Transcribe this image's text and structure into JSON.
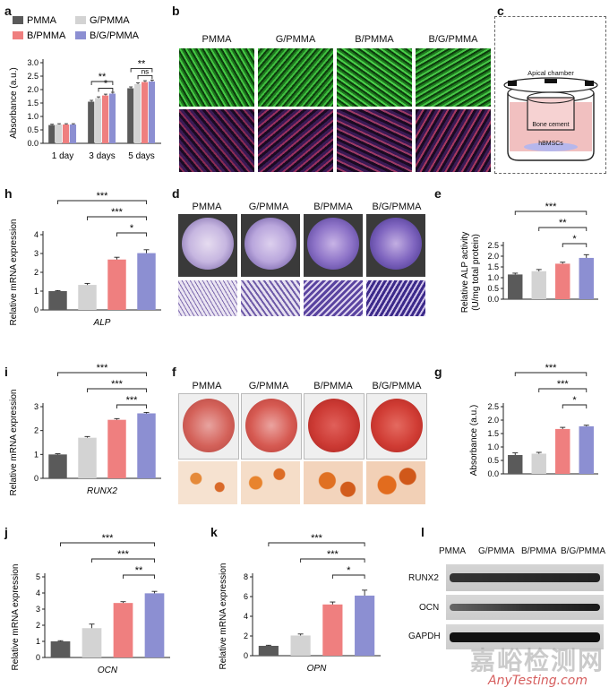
{
  "panels": {
    "a": "a",
    "b": "b",
    "c": "c",
    "d": "d",
    "e": "e",
    "f": "f",
    "g": "g",
    "h": "h",
    "i": "i",
    "j": "j",
    "k": "k",
    "l": "l"
  },
  "groups": [
    "PMMA",
    "G/PMMA",
    "B/PMMA",
    "B/G/PMMA"
  ],
  "colors": {
    "PMMA": "#5a5a5a",
    "G/PMMA": "#d3d3d3",
    "B/PMMA": "#ef7f7f",
    "B/G/PMMA": "#8c8fd2"
  },
  "chart_data": [
    {
      "id": "a",
      "type": "bar",
      "ylabel": "Absorbance (a.u.)",
      "ylim": [
        0,
        3.0
      ],
      "yticks": [
        "0.0",
        "0.5",
        "1.0",
        "1.5",
        "2.0",
        "2.5",
        "3.0"
      ],
      "categories": [
        "1 day",
        "3 days",
        "5 days"
      ],
      "series": [
        {
          "name": "PMMA",
          "values": [
            0.68,
            1.55,
            2.05
          ],
          "errors": [
            0.03,
            0.05,
            0.05
          ]
        },
        {
          "name": "G/PMMA",
          "values": [
            0.7,
            1.68,
            2.2
          ],
          "errors": [
            0.03,
            0.05,
            0.05
          ]
        },
        {
          "name": "B/PMMA",
          "values": [
            0.7,
            1.78,
            2.28
          ],
          "errors": [
            0.03,
            0.05,
            0.05
          ]
        },
        {
          "name": "B/G/PMMA",
          "values": [
            0.7,
            1.85,
            2.3
          ],
          "errors": [
            0.03,
            0.05,
            0.05
          ]
        }
      ],
      "significance": [
        "**",
        "*",
        "**",
        "ns"
      ]
    },
    {
      "id": "h",
      "type": "bar",
      "ylabel": "Relative mRNA expression",
      "xlabel": "ALP",
      "ylim": [
        0,
        4
      ],
      "yticks": [
        "0",
        "1",
        "2",
        "3",
        "4"
      ],
      "categories": [
        "PMMA",
        "G/PMMA",
        "B/PMMA",
        "B/G/PMMA"
      ],
      "values": [
        1.0,
        1.33,
        2.68,
        3.02
      ],
      "errors": [
        0.03,
        0.08,
        0.12,
        0.18
      ],
      "significance": [
        "***",
        "***",
        "*"
      ]
    },
    {
      "id": "e",
      "type": "bar",
      "ylabel": "Relative ALP activity",
      "ylabel2": "(U/mg total protein)",
      "ylim": [
        0,
        2.5
      ],
      "yticks": [
        "0.0",
        "0.5",
        "1.0",
        "1.5",
        "2.0",
        "2.5"
      ],
      "categories": [
        "PMMA",
        "G/PMMA",
        "B/PMMA",
        "B/G/PMMA"
      ],
      "values": [
        1.15,
        1.3,
        1.65,
        1.92
      ],
      "errors": [
        0.06,
        0.08,
        0.07,
        0.15
      ],
      "significance": [
        "***",
        "**",
        "*"
      ]
    },
    {
      "id": "i",
      "type": "bar",
      "ylabel": "Relative mRNA expression",
      "xlabel": "RUNX2",
      "ylim": [
        0,
        3
      ],
      "yticks": [
        "0",
        "1",
        "2",
        "3"
      ],
      "categories": [
        "PMMA",
        "G/PMMA",
        "B/PMMA",
        "B/G/PMMA"
      ],
      "values": [
        1.0,
        1.7,
        2.45,
        2.72
      ],
      "errors": [
        0.03,
        0.05,
        0.05,
        0.04
      ],
      "significance": [
        "***",
        "***",
        "***"
      ]
    },
    {
      "id": "g",
      "type": "bar",
      "ylabel": "Absorbance (a.u.)",
      "ylim": [
        0,
        2.5
      ],
      "yticks": [
        "0.0",
        "0.5",
        "1.0",
        "1.5",
        "2.0",
        "2.5"
      ],
      "categories": [
        "PMMA",
        "G/PMMA",
        "B/PMMA",
        "B/G/PMMA"
      ],
      "values": [
        0.7,
        0.75,
        1.67,
        1.77
      ],
      "errors": [
        0.08,
        0.05,
        0.06,
        0.04
      ],
      "significance": [
        "***",
        "***",
        "*"
      ]
    },
    {
      "id": "j",
      "type": "bar",
      "ylabel": "Relative mRNA expression",
      "xlabel": "OCN",
      "ylim": [
        0,
        5
      ],
      "yticks": [
        "0",
        "1",
        "2",
        "3",
        "4",
        "5"
      ],
      "categories": [
        "PMMA",
        "G/PMMA",
        "B/PMMA",
        "B/G/PMMA"
      ],
      "values": [
        1.0,
        1.82,
        3.38,
        3.98
      ],
      "errors": [
        0.04,
        0.25,
        0.08,
        0.12
      ],
      "significance": [
        "***",
        "***",
        "**"
      ]
    },
    {
      "id": "k",
      "type": "bar",
      "ylabel": "Relative mRNA expression",
      "xlabel": "OPN",
      "ylim": [
        0,
        8
      ],
      "yticks": [
        "0",
        "2",
        "4",
        "6",
        "8"
      ],
      "categories": [
        "PMMA",
        "G/PMMA",
        "B/PMMA",
        "B/G/PMMA"
      ],
      "values": [
        1.0,
        2.05,
        5.2,
        6.1
      ],
      "errors": [
        0.06,
        0.15,
        0.25,
        0.55
      ],
      "significance": [
        "***",
        "***",
        "*"
      ]
    }
  ],
  "schematic": {
    "apical": "Apical chamber",
    "cement": "Bone cement",
    "cells": "hBMSCs"
  },
  "western": {
    "headers": [
      "PMMA",
      "G/PMMA",
      "B/PMMA",
      "B/G/PMMA"
    ],
    "rows": [
      "RUNX2",
      "OCN",
      "GAPDH"
    ]
  },
  "watermark": {
    "cn": "嘉峪检测网",
    "en": "AnyTesting.com"
  }
}
